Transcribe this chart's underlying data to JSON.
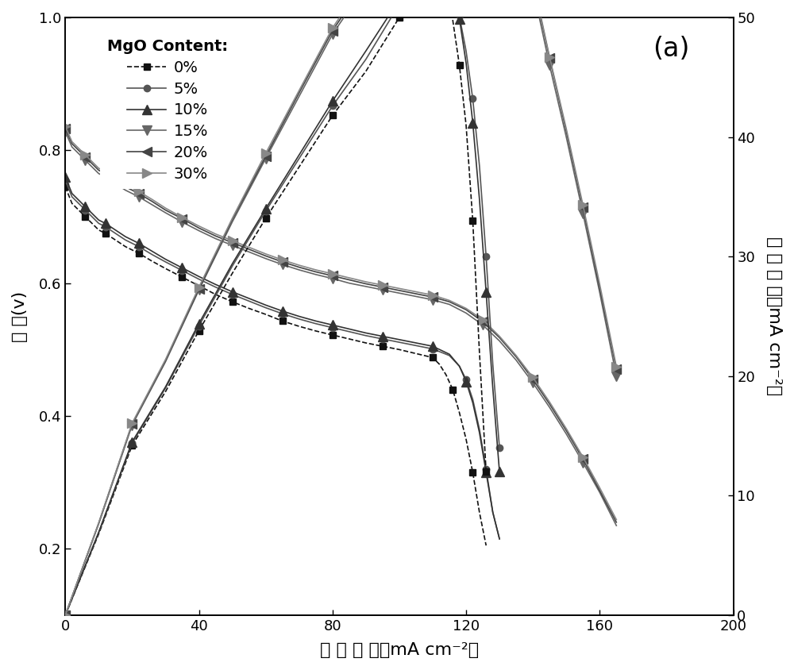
{
  "title_label": "(a)",
  "xlabel": "电 流 密 度（mA cm⁻²）",
  "ylabel_left": "电 压(v)",
  "ylabel_right": "功 率 密 度（mA cm⁻²）",
  "xlim": [
    0,
    200
  ],
  "ylim_left": [
    0.1,
    1.0
  ],
  "ylim_right": [
    0,
    50
  ],
  "yticks_left": [
    0.2,
    0.4,
    0.6,
    0.8,
    1.0
  ],
  "yticks_right": [
    0,
    10,
    20,
    30,
    40,
    50
  ],
  "xticks": [
    0,
    40,
    80,
    120,
    160,
    200
  ],
  "series": [
    {
      "label": "0%",
      "color": "#111111",
      "marker": "s",
      "linestyle_v": "--",
      "linestyle_p": "--",
      "voltage_x": [
        0,
        2,
        4,
        6,
        8,
        10,
        12,
        15,
        18,
        22,
        26,
        30,
        35,
        40,
        45,
        50,
        55,
        60,
        65,
        70,
        75,
        80,
        85,
        90,
        95,
        100,
        105,
        110,
        112,
        114,
        116,
        118,
        120,
        122,
        124,
        126
      ],
      "voltage_y": [
        0.745,
        0.72,
        0.71,
        0.7,
        0.69,
        0.68,
        0.675,
        0.665,
        0.655,
        0.645,
        0.633,
        0.622,
        0.609,
        0.596,
        0.583,
        0.572,
        0.562,
        0.553,
        0.543,
        0.535,
        0.528,
        0.522,
        0.516,
        0.51,
        0.505,
        0.5,
        0.494,
        0.488,
        0.478,
        0.462,
        0.44,
        0.405,
        0.365,
        0.315,
        0.255,
        0.205
      ],
      "power_x": [
        0,
        10,
        20,
        30,
        40,
        50,
        60,
        70,
        80,
        90,
        100,
        106,
        110,
        112,
        114,
        116,
        118,
        120,
        122,
        124,
        126
      ],
      "power_y": [
        0,
        6.8,
        14.2,
        18.7,
        23.8,
        28.6,
        33.2,
        37.5,
        41.8,
        45.5,
        50.0,
        52.6,
        53.6,
        54.0,
        52.8,
        49.8,
        46.0,
        41.0,
        33.0,
        22.0,
        12.0
      ]
    },
    {
      "label": "5%",
      "color": "#555555",
      "marker": "o",
      "linestyle_v": "-",
      "linestyle_p": "-",
      "voltage_x": [
        0,
        2,
        4,
        6,
        8,
        10,
        12,
        15,
        18,
        22,
        26,
        30,
        35,
        40,
        45,
        50,
        55,
        60,
        65,
        70,
        75,
        80,
        85,
        90,
        95,
        100,
        105,
        110,
        115,
        118,
        120,
        122,
        124,
        126,
        128,
        130
      ],
      "voltage_y": [
        0.755,
        0.73,
        0.72,
        0.71,
        0.7,
        0.69,
        0.685,
        0.675,
        0.665,
        0.655,
        0.643,
        0.632,
        0.619,
        0.606,
        0.594,
        0.583,
        0.573,
        0.563,
        0.554,
        0.546,
        0.539,
        0.533,
        0.527,
        0.521,
        0.516,
        0.511,
        0.506,
        0.501,
        0.491,
        0.475,
        0.455,
        0.425,
        0.38,
        0.32,
        0.255,
        0.215
      ],
      "power_x": [
        0,
        10,
        20,
        30,
        40,
        50,
        60,
        70,
        80,
        90,
        100,
        108,
        112,
        115,
        118,
        120,
        122,
        124,
        126,
        128,
        130
      ],
      "power_y": [
        0,
        6.9,
        14.4,
        19.0,
        24.2,
        29.2,
        33.8,
        38.2,
        42.6,
        46.5,
        51.1,
        54.1,
        53.6,
        52.4,
        50.1,
        47.2,
        43.2,
        37.6,
        30.0,
        21.0,
        14.0
      ]
    },
    {
      "label": "10%",
      "color": "#333333",
      "marker": "^",
      "linestyle_v": "-",
      "linestyle_p": "-",
      "voltage_x": [
        0,
        2,
        4,
        6,
        8,
        10,
        12,
        15,
        18,
        22,
        26,
        30,
        35,
        40,
        45,
        50,
        55,
        60,
        65,
        70,
        75,
        80,
        85,
        90,
        95,
        100,
        105,
        110,
        115,
        118,
        120,
        122,
        124,
        126,
        128,
        130
      ],
      "voltage_y": [
        0.76,
        0.735,
        0.725,
        0.715,
        0.705,
        0.695,
        0.69,
        0.68,
        0.67,
        0.66,
        0.648,
        0.636,
        0.623,
        0.61,
        0.598,
        0.587,
        0.577,
        0.567,
        0.558,
        0.55,
        0.543,
        0.537,
        0.531,
        0.525,
        0.52,
        0.515,
        0.51,
        0.505,
        0.493,
        0.475,
        0.452,
        0.42,
        0.375,
        0.315,
        0.255,
        0.215
      ],
      "power_x": [
        0,
        10,
        20,
        30,
        40,
        50,
        60,
        70,
        80,
        90,
        100,
        110,
        114,
        116,
        118,
        120,
        122,
        124,
        126,
        128,
        130
      ],
      "power_y": [
        0,
        6.95,
        14.5,
        19.1,
        24.4,
        29.4,
        34.0,
        38.5,
        43.0,
        47.2,
        51.5,
        55.6,
        54.2,
        52.3,
        49.9,
        46.2,
        41.2,
        34.8,
        27.0,
        19.0,
        12.0
      ]
    },
    {
      "label": "15%",
      "color": "#666666",
      "marker": "v",
      "linestyle_v": "-",
      "linestyle_p": "-",
      "voltage_x": [
        0,
        2,
        4,
        6,
        8,
        10,
        12,
        15,
        18,
        22,
        26,
        30,
        35,
        40,
        45,
        50,
        55,
        60,
        65,
        70,
        75,
        80,
        85,
        90,
        95,
        100,
        105,
        110,
        115,
        120,
        125,
        130,
        135,
        140,
        145,
        150,
        155,
        160,
        165
      ],
      "voltage_y": [
        0.828,
        0.805,
        0.795,
        0.785,
        0.775,
        0.765,
        0.76,
        0.75,
        0.74,
        0.73,
        0.718,
        0.706,
        0.692,
        0.679,
        0.667,
        0.657,
        0.647,
        0.637,
        0.628,
        0.62,
        0.613,
        0.607,
        0.6,
        0.595,
        0.59,
        0.585,
        0.58,
        0.575,
        0.568,
        0.555,
        0.537,
        0.513,
        0.484,
        0.45,
        0.413,
        0.373,
        0.33,
        0.285,
        0.235
      ],
      "power_x": [
        0,
        10,
        20,
        30,
        40,
        50,
        60,
        70,
        80,
        90,
        100,
        110,
        120,
        125,
        128,
        130,
        135,
        140,
        145,
        150,
        155,
        160,
        165
      ],
      "power_y": [
        0,
        7.65,
        15.9,
        21.2,
        27.2,
        32.9,
        38.2,
        43.4,
        48.6,
        52.7,
        58.5,
        63.3,
        66.6,
        67.1,
        65.3,
        63.0,
        57.8,
        52.5,
        46.0,
        40.0,
        33.6,
        27.0,
        20.0
      ]
    },
    {
      "label": "20%",
      "color": "#444444",
      "marker": "<",
      "linestyle_v": "-",
      "linestyle_p": "-",
      "voltage_x": [
        0,
        2,
        4,
        6,
        8,
        10,
        12,
        15,
        18,
        22,
        26,
        30,
        35,
        40,
        45,
        50,
        55,
        60,
        65,
        70,
        75,
        80,
        85,
        90,
        95,
        100,
        105,
        110,
        115,
        120,
        125,
        130,
        135,
        140,
        145,
        150,
        155,
        160,
        165
      ],
      "voltage_y": [
        0.833,
        0.81,
        0.8,
        0.79,
        0.78,
        0.77,
        0.765,
        0.755,
        0.745,
        0.735,
        0.723,
        0.71,
        0.697,
        0.683,
        0.671,
        0.661,
        0.651,
        0.641,
        0.632,
        0.624,
        0.617,
        0.611,
        0.605,
        0.599,
        0.594,
        0.589,
        0.584,
        0.579,
        0.572,
        0.56,
        0.542,
        0.518,
        0.489,
        0.455,
        0.418,
        0.378,
        0.335,
        0.288,
        0.24
      ],
      "power_x": [
        0,
        10,
        20,
        30,
        40,
        50,
        60,
        70,
        80,
        90,
        100,
        110,
        120,
        125,
        128,
        130,
        135,
        140,
        145,
        150,
        155,
        160,
        165
      ],
      "power_y": [
        0,
        7.7,
        16.0,
        21.3,
        27.3,
        33.1,
        38.4,
        43.7,
        48.9,
        53.0,
        58.9,
        63.7,
        67.2,
        67.8,
        65.9,
        63.5,
        58.4,
        53.0,
        46.6,
        40.5,
        34.1,
        27.4,
        20.6
      ]
    },
    {
      "label": "30%",
      "color": "#888888",
      "marker": ">",
      "linestyle_v": "-",
      "linestyle_p": "-",
      "voltage_x": [
        0,
        2,
        4,
        6,
        8,
        10,
        12,
        15,
        18,
        22,
        26,
        30,
        35,
        40,
        45,
        50,
        55,
        60,
        65,
        70,
        75,
        80,
        85,
        90,
        95,
        100,
        105,
        110,
        115,
        120,
        125,
        130,
        135,
        140,
        145,
        150,
        155,
        160,
        165
      ],
      "voltage_y": [
        0.836,
        0.813,
        0.803,
        0.793,
        0.783,
        0.773,
        0.768,
        0.758,
        0.748,
        0.738,
        0.726,
        0.713,
        0.699,
        0.686,
        0.674,
        0.664,
        0.654,
        0.644,
        0.635,
        0.627,
        0.62,
        0.614,
        0.608,
        0.602,
        0.597,
        0.592,
        0.587,
        0.582,
        0.574,
        0.562,
        0.545,
        0.52,
        0.491,
        0.458,
        0.421,
        0.381,
        0.338,
        0.292,
        0.244
      ],
      "power_x": [
        0,
        10,
        20,
        30,
        40,
        50,
        60,
        70,
        80,
        90,
        100,
        110,
        120,
        125,
        128,
        130,
        135,
        140,
        145,
        150,
        155,
        160,
        165
      ],
      "power_y": [
        0,
        7.73,
        16.06,
        21.39,
        27.44,
        33.2,
        38.64,
        43.89,
        49.12,
        53.28,
        59.2,
        64.02,
        67.44,
        68.13,
        66.1,
        63.6,
        58.5,
        53.2,
        46.7,
        40.7,
        34.3,
        27.7,
        20.8
      ]
    }
  ],
  "legend_title": "MgO Content:",
  "background_color": "#ffffff",
  "figure_facecolor": "#ffffff"
}
